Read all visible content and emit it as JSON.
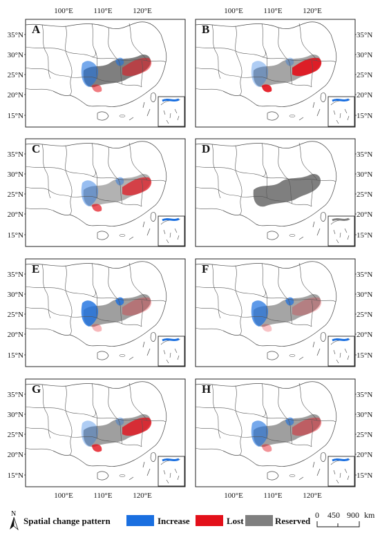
{
  "panels": [
    {
      "label": "A"
    },
    {
      "label": "B"
    },
    {
      "label": "C"
    },
    {
      "label": "D"
    },
    {
      "label": "E"
    },
    {
      "label": "F"
    },
    {
      "label": "G"
    },
    {
      "label": "H"
    }
  ],
  "axes": {
    "longitude_ticks": [
      "100°E",
      "110°E",
      "120°E"
    ],
    "latitude_ticks": [
      "35°N",
      "30°N",
      "25°N",
      "20°N",
      "15°N"
    ]
  },
  "legend": {
    "title": "Spatial change pattern",
    "items": [
      {
        "label": "Increase",
        "color": "#1a6fe0"
      },
      {
        "label": "Lost",
        "color": "#e3101a"
      },
      {
        "label": "Reserved",
        "color": "#7f7f7f"
      }
    ]
  },
  "scale_bar": {
    "labels": [
      "0",
      "450",
      "900"
    ],
    "unit": "km"
  },
  "north_arrow": {
    "label": "N"
  }
}
